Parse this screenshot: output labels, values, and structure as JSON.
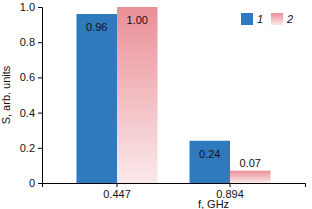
{
  "chart_data": {
    "type": "bar",
    "x_label": "f, GHz",
    "y_label": "S, arb. units",
    "categories": [
      "0.447",
      "0.894"
    ],
    "series": [
      {
        "name": "1",
        "color": "#2f79bf",
        "values": [
          0.96,
          0.24
        ]
      },
      {
        "name": "2",
        "color": "#e98f97",
        "values": [
          1.0,
          0.07
        ],
        "value_labels": [
          "1.00",
          "0.07"
        ]
      }
    ],
    "ylim": [
      0,
      1
    ],
    "yticks": [
      0,
      0.2,
      0.4,
      0.6,
      0.8,
      {
        "value": 1,
        "label": "1.0"
      }
    ],
    "data_labels": true,
    "legend": "upper right",
    "grid": false
  }
}
